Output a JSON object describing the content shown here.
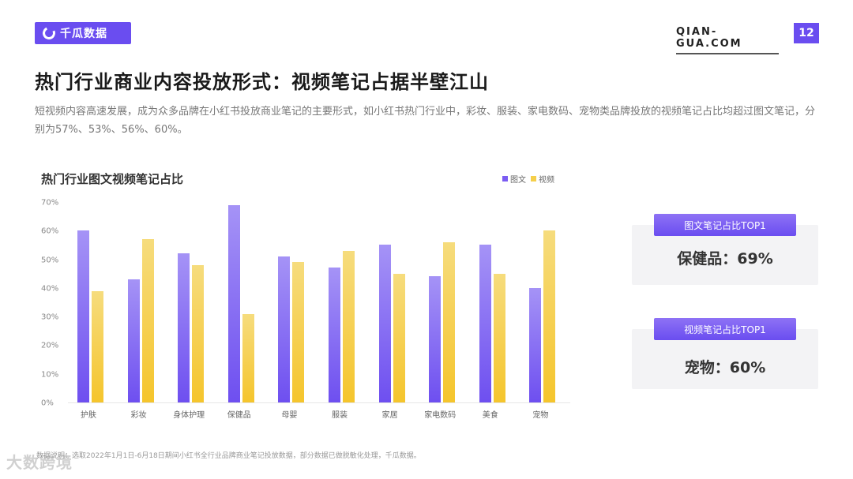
{
  "header": {
    "logo_text": "千瓜数据",
    "site": "QIAN-GUA.COM",
    "page_number": "12",
    "accent_color": "#6a4df0"
  },
  "title": "热门行业商业内容投放形式：视频笔记占据半壁江山",
  "description": "短视频内容高速发展，成为众多品牌在小红书投放商业笔记的主要形式，如小红书热门行业中，彩妆、服装、家电数码、宠物类品牌投放的视频笔记占比均超过图文笔记，分别为57%、53%、56%、60%。",
  "chart_data": {
    "type": "bar",
    "title": "热门行业图文视频笔记占比",
    "xlabel": "",
    "ylabel": "",
    "ylim": [
      0,
      70
    ],
    "yticks": [
      "0%",
      "10%",
      "20%",
      "30%",
      "40%",
      "50%",
      "60%",
      "70%"
    ],
    "grid": false,
    "legend_position": "top-right",
    "categories": [
      "护肤",
      "彩妆",
      "身体护理",
      "保健品",
      "母婴",
      "服装",
      "家居",
      "家电数码",
      "美食",
      "宠物"
    ],
    "series": [
      {
        "name": "图文",
        "color": "#7b5cf2",
        "values": [
          60,
          43,
          52,
          69,
          51,
          47,
          55,
          44,
          55,
          40
        ]
      },
      {
        "name": "视频",
        "color": "#f5cf4a",
        "values": [
          39,
          57,
          48,
          31,
          49,
          53,
          45,
          56,
          45,
          60
        ]
      }
    ]
  },
  "cards": [
    {
      "tag": "图文笔记占比TOP1",
      "value": "保健品：69%"
    },
    {
      "tag": "视频笔记占比TOP1",
      "value": "宠物：60%"
    }
  ],
  "footnote": "数据说明：选取2022年1月1日-6月18日期间小红书全行业品牌商业笔记投放数据，部分数据已做脱敏化处理，千瓜数据。",
  "watermark": "大数跨境"
}
